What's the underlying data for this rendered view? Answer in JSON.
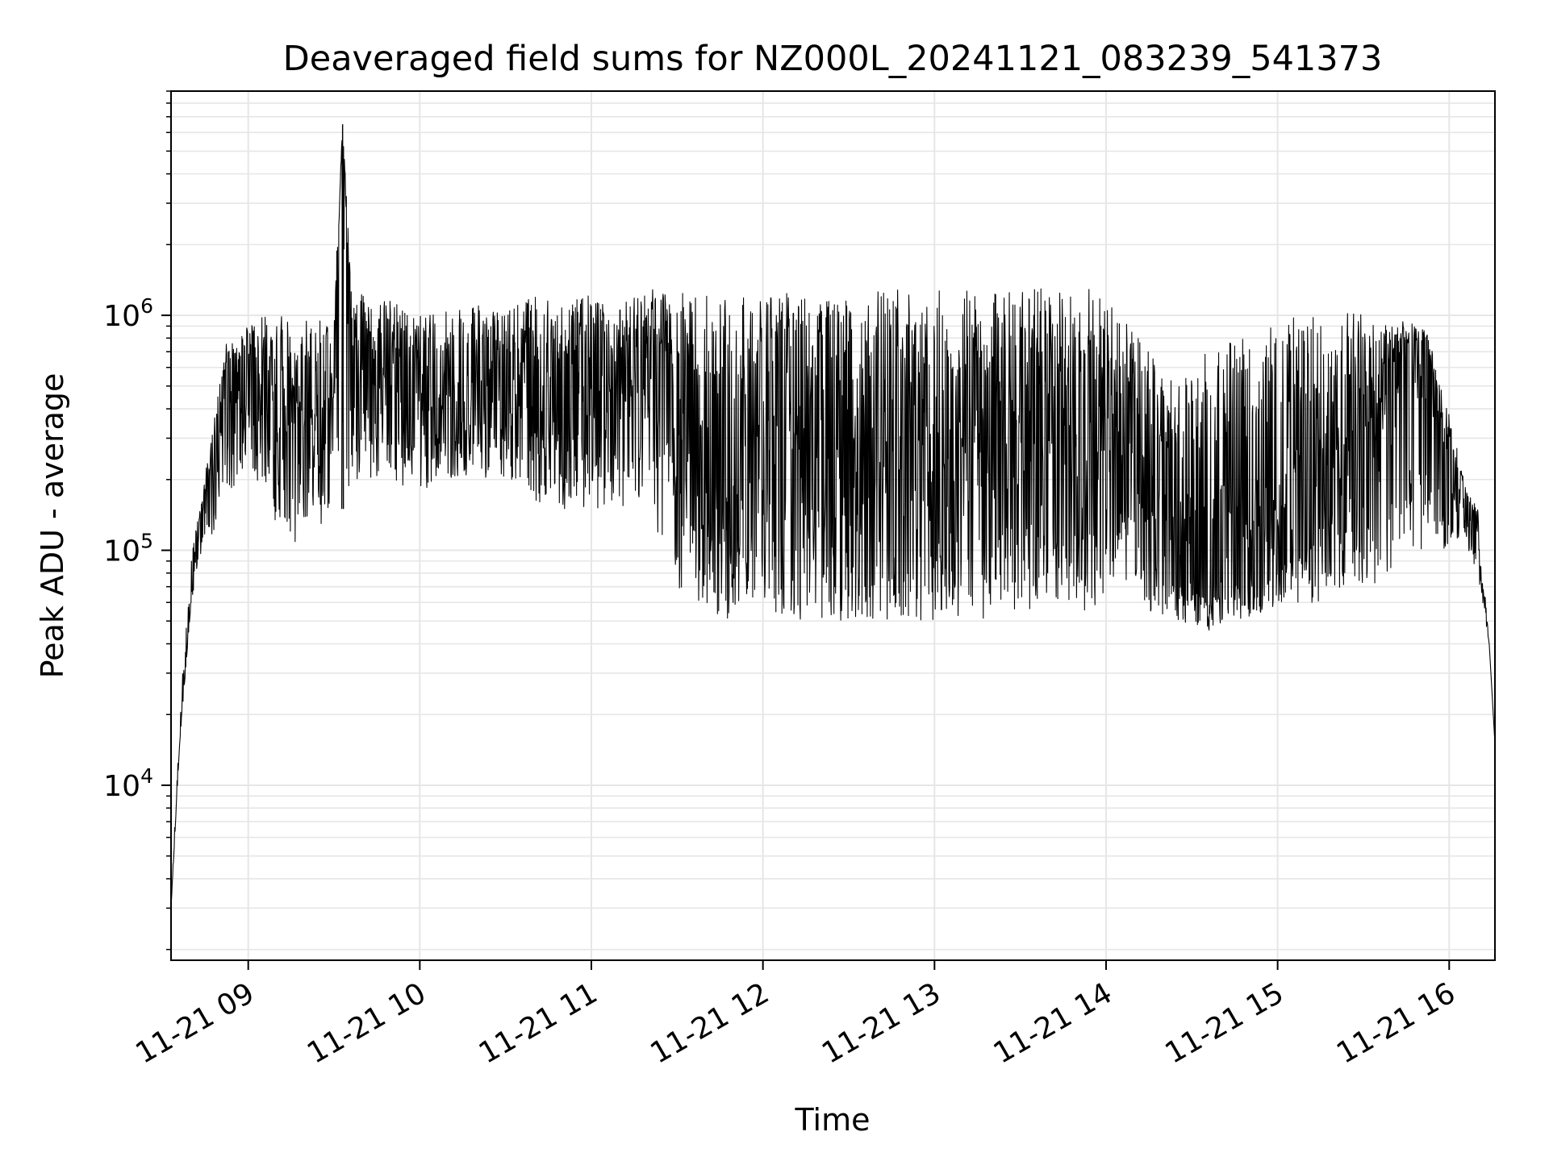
{
  "chart_data": {
    "type": "line",
    "title": "Deaveraged field sums for NZ000L_20241121_083239_541373",
    "xlabel": "Time",
    "ylabel": "Peak ADU - average",
    "x_start": "2024-11-21 08:33",
    "x_end": "2024-11-21 16:16",
    "xlim": [
      "2024-11-21 08:33",
      "2024-11-21 16:16"
    ],
    "ylim": [
      1800,
      9000000
    ],
    "y_scale": "log",
    "grid": true,
    "line_color": "#000000",
    "grid_color": "#e6e6e6",
    "x_ticks": [
      {
        "value": "2024-11-21 09:00",
        "label": "11-21 09"
      },
      {
        "value": "2024-11-21 10:00",
        "label": "11-21 10"
      },
      {
        "value": "2024-11-21 11:00",
        "label": "11-21 11"
      },
      {
        "value": "2024-11-21 12:00",
        "label": "11-21 12"
      },
      {
        "value": "2024-11-21 13:00",
        "label": "11-21 13"
      },
      {
        "value": "2024-11-21 14:00",
        "label": "11-21 14"
      },
      {
        "value": "2024-11-21 15:00",
        "label": "11-21 15"
      },
      {
        "value": "2024-11-21 16:00",
        "label": "11-21 16"
      }
    ],
    "y_ticks": [
      {
        "value": 10000,
        "base": "10",
        "exp": "4"
      },
      {
        "value": 100000,
        "base": "10",
        "exp": "5"
      },
      {
        "value": 1000000,
        "base": "10",
        "exp": "6"
      }
    ],
    "series": [
      {
        "x": [
          "2024-11-21 08:33",
          "2024-11-21 08:36",
          "2024-11-21 08:40",
          "2024-11-21 08:44",
          "2024-11-21 08:48",
          "2024-11-21 08:52",
          "2024-11-21 08:56",
          "2024-11-21 09:00",
          "2024-11-21 09:06",
          "2024-11-21 09:12",
          "2024-11-21 09:18",
          "2024-11-21 09:24",
          "2024-11-21 09:30",
          "2024-11-21 09:33",
          "2024-11-21 09:36",
          "2024-11-21 09:42",
          "2024-11-21 09:50",
          "2024-11-21 10:00",
          "2024-11-21 10:10",
          "2024-11-21 10:20",
          "2024-11-21 10:30",
          "2024-11-21 10:40",
          "2024-11-21 10:50",
          "2024-11-21 11:00",
          "2024-11-21 11:10",
          "2024-11-21 11:20",
          "2024-11-21 11:30",
          "2024-11-21 11:40",
          "2024-11-21 11:50",
          "2024-11-21 12:00",
          "2024-11-21 12:15",
          "2024-11-21 12:30",
          "2024-11-21 12:45",
          "2024-11-21 13:00",
          "2024-11-21 13:15",
          "2024-11-21 13:30",
          "2024-11-21 13:45",
          "2024-11-21 13:57",
          "2024-11-21 14:05",
          "2024-11-21 14:15",
          "2024-11-21 14:25",
          "2024-11-21 14:35",
          "2024-11-21 14:45",
          "2024-11-21 14:55",
          "2024-11-21 15:05",
          "2024-11-21 15:15",
          "2024-11-21 15:25",
          "2024-11-21 15:35",
          "2024-11-21 15:45",
          "2024-11-21 15:52",
          "2024-11-21 16:00",
          "2024-11-21 16:06",
          "2024-11-21 16:10",
          "2024-11-21 16:14",
          "2024-11-21 16:16"
        ],
        "y": [
          3000,
          15000,
          60000,
          150000,
          200000,
          500000,
          550000,
          500000,
          450000,
          350000,
          400000,
          350000,
          400000,
          6500000,
          500000,
          450000,
          500000,
          400000,
          450000,
          400000,
          500000,
          450000,
          400000,
          500000,
          450000,
          600000,
          300000,
          250000,
          200000,
          250000,
          250000,
          250000,
          250000,
          250000,
          250000,
          250000,
          250000,
          250000,
          250000,
          150000,
          100000,
          90000,
          100000,
          100000,
          150000,
          200000,
          250000,
          350000,
          600000,
          700000,
          200000,
          150000,
          120000,
          40000,
          15000
        ],
        "lows": [
          3000,
          15000,
          60000,
          100000,
          120000,
          150000,
          200000,
          250000,
          150000,
          100000,
          100000,
          120000,
          150000,
          150000,
          200000,
          200000,
          180000,
          180000,
          200000,
          200000,
          200000,
          150000,
          150000,
          150000,
          150000,
          150000,
          70000,
          55000,
          50000,
          55000,
          50000,
          50000,
          50000,
          50000,
          50000,
          55000,
          55000,
          55000,
          80000,
          55000,
          50000,
          45000,
          50000,
          55000,
          60000,
          60000,
          70000,
          70000,
          90000,
          100000,
          100000,
          100000,
          80000,
          40000,
          15000
        ],
        "highs": [
          3000,
          20000,
          95000,
          180000,
          350000,
          750000,
          800000,
          900000,
          1000000,
          1050000,
          1050000,
          1000000,
          1050000,
          6500000,
          1300000,
          1200000,
          1150000,
          1000000,
          1050000,
          1100000,
          1100000,
          1200000,
          1100000,
          1300000,
          1100000,
          1300000,
          1250000,
          1250000,
          1250000,
          1250000,
          1300000,
          1300000,
          1300000,
          1300000,
          1300000,
          1300000,
          1300000,
          1300000,
          1000000,
          700000,
          500000,
          700000,
          800000,
          900000,
          1000000,
          1000000,
          1100000,
          900000,
          950000,
          850000,
          400000,
          180000,
          150000,
          40000,
          15000
        ]
      }
    ]
  }
}
